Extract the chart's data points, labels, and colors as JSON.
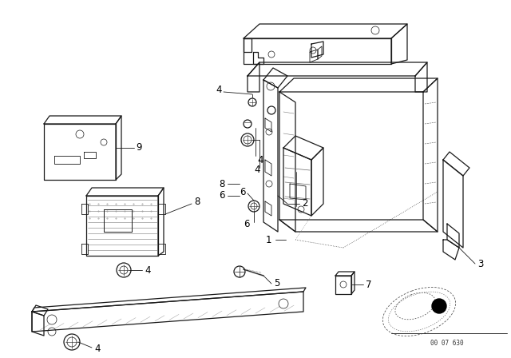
{
  "background_color": "#ffffff",
  "line_color": "#1a1a1a",
  "label_color": "#000000",
  "diagram_number": "00 07 630",
  "figsize": [
    6.4,
    4.48
  ],
  "dpi": 100,
  "lw_main": 0.9,
  "lw_thin": 0.5,
  "lw_dot": 0.5,
  "label_fontsize": 8.5
}
